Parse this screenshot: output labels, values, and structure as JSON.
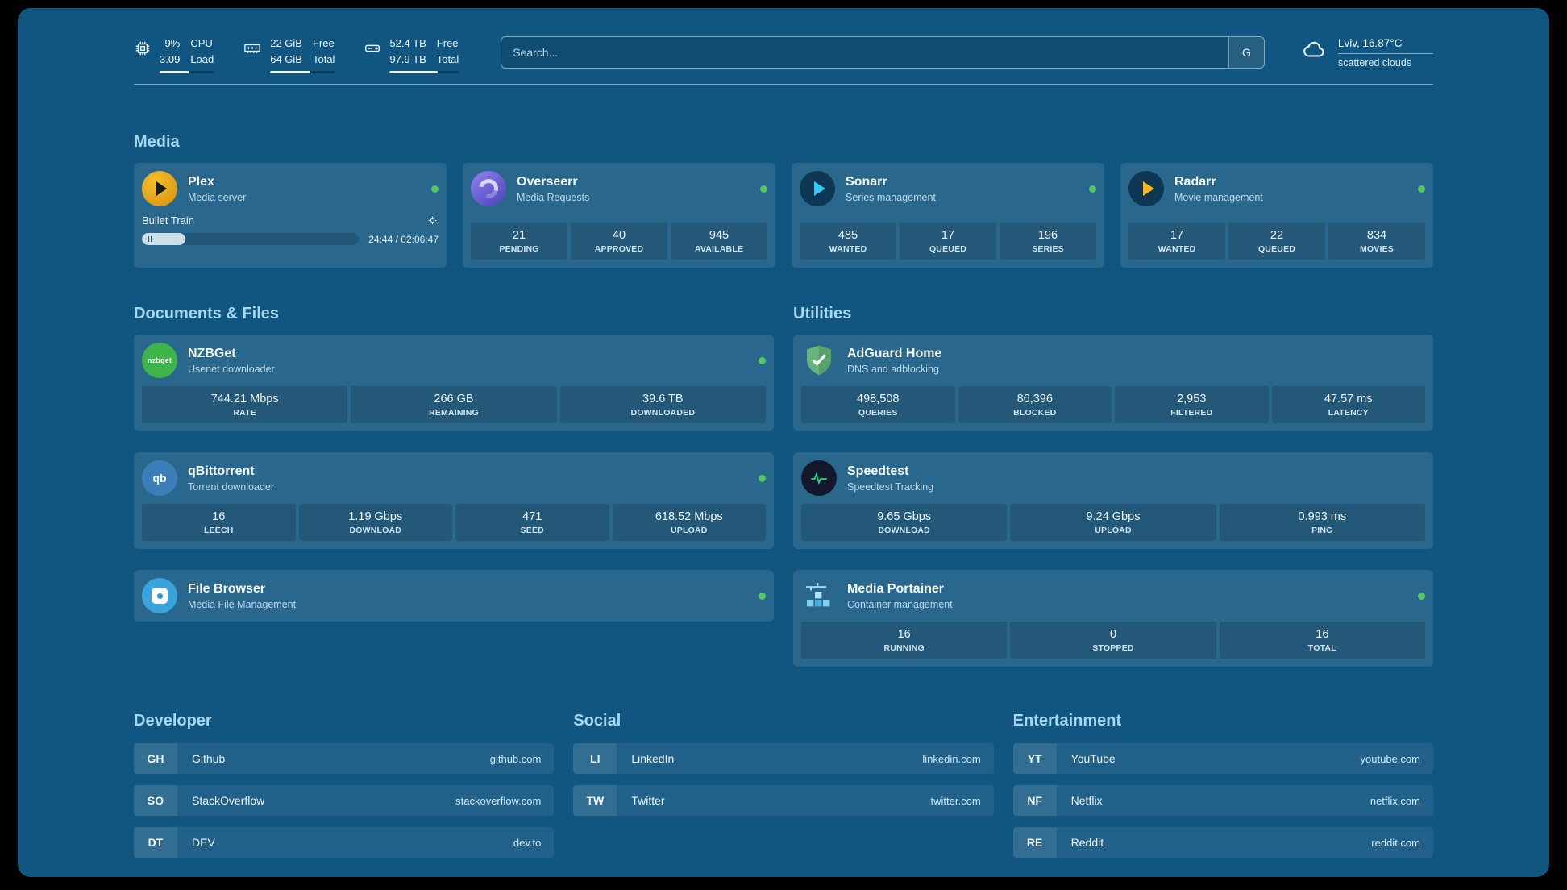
{
  "colors": {
    "background": "#115680",
    "card": "#2c6e93",
    "heading": "#a5d8f2",
    "status_online": "#4fcb5f"
  },
  "icons": [
    "cpu-chip-icon",
    "memory-icon",
    "disk-icon",
    "cloud-icon",
    "plex-icon",
    "overseerr-icon",
    "sonarr-icon",
    "radarr-icon",
    "nzbget-icon",
    "adguard-shield-icon",
    "qbittorrent-icon",
    "speedtest-icon",
    "filebrowser-icon",
    "portainer-icon",
    "gear-icon",
    "pause-icon",
    "status-dot"
  ],
  "topbar": {
    "cpu": {
      "values": [
        "9%",
        "3.09"
      ],
      "labels": [
        "CPU",
        "Load"
      ],
      "bar_pct": 55
    },
    "memory": {
      "values": [
        "22 GiB",
        "64 GiB"
      ],
      "labels": [
        "Free",
        "Total"
      ],
      "bar_pct": 62
    },
    "disk": {
      "values": [
        "52.4 TB",
        "97.9 TB"
      ],
      "labels": [
        "Free",
        "Total"
      ],
      "bar_pct": 70
    },
    "search": {
      "placeholder": "Search...",
      "engine": "G"
    },
    "weather": {
      "location": "Lviv, 16.87°C",
      "condition": "scattered clouds"
    }
  },
  "sections": {
    "media": {
      "title": "Media",
      "plex": {
        "name": "Plex",
        "subtitle": "Media server",
        "now_playing": "Bullet Train",
        "progress_pct": 20,
        "time": "24:44 / 02:06:47"
      },
      "overseerr": {
        "name": "Overseerr",
        "subtitle": "Media Requests",
        "stats": [
          {
            "value": "21",
            "label": "PENDING"
          },
          {
            "value": "40",
            "label": "APPROVED"
          },
          {
            "value": "945",
            "label": "AVAILABLE"
          }
        ]
      },
      "sonarr": {
        "name": "Sonarr",
        "subtitle": "Series management",
        "stats": [
          {
            "value": "485",
            "label": "WANTED"
          },
          {
            "value": "17",
            "label": "QUEUED"
          },
          {
            "value": "196",
            "label": "SERIES"
          }
        ]
      },
      "radarr": {
        "name": "Radarr",
        "subtitle": "Movie management",
        "stats": [
          {
            "value": "17",
            "label": "WANTED"
          },
          {
            "value": "22",
            "label": "QUEUED"
          },
          {
            "value": "834",
            "label": "MOVIES"
          }
        ]
      }
    },
    "documents": {
      "title": "Documents & Files",
      "nzbget": {
        "name": "NZBGet",
        "subtitle": "Usenet downloader",
        "icon_label": "nzbget",
        "stats": [
          {
            "value": "744.21 Mbps",
            "label": "RATE"
          },
          {
            "value": "266 GB",
            "label": "REMAINING"
          },
          {
            "value": "39.6 TB",
            "label": "DOWNLOADED"
          }
        ]
      },
      "qbittorrent": {
        "name": "qBittorrent",
        "subtitle": "Torrent downloader",
        "icon_label": "qb",
        "stats": [
          {
            "value": "16",
            "label": "LEECH"
          },
          {
            "value": "1.19 Gbps",
            "label": "DOWNLOAD"
          },
          {
            "value": "471",
            "label": "SEED"
          },
          {
            "value": "618.52 Mbps",
            "label": "UPLOAD"
          }
        ]
      },
      "filebrowser": {
        "name": "File Browser",
        "subtitle": "Media File Management"
      }
    },
    "utilities": {
      "title": "Utilities",
      "adguard": {
        "name": "AdGuard Home",
        "subtitle": "DNS and adblocking",
        "stats": [
          {
            "value": "498,508",
            "label": "QUERIES"
          },
          {
            "value": "86,396",
            "label": "BLOCKED"
          },
          {
            "value": "2,953",
            "label": "FILTERED"
          },
          {
            "value": "47.57 ms",
            "label": "LATENCY"
          }
        ]
      },
      "speedtest": {
        "name": "Speedtest",
        "subtitle": "Speedtest Tracking",
        "stats": [
          {
            "value": "9.65 Gbps",
            "label": "DOWNLOAD"
          },
          {
            "value": "9.24 Gbps",
            "label": "UPLOAD"
          },
          {
            "value": "0.993 ms",
            "label": "PING"
          }
        ]
      },
      "portainer": {
        "name": "Media Portainer",
        "subtitle": "Container management",
        "stats": [
          {
            "value": "16",
            "label": "RUNNING"
          },
          {
            "value": "0",
            "label": "STOPPED"
          },
          {
            "value": "16",
            "label": "TOTAL"
          }
        ]
      }
    },
    "bookmarks": {
      "developer": {
        "title": "Developer",
        "items": [
          {
            "abbr": "GH",
            "name": "Github",
            "url": "github.com"
          },
          {
            "abbr": "SO",
            "name": "StackOverflow",
            "url": "stackoverflow.com"
          },
          {
            "abbr": "DT",
            "name": "DEV",
            "url": "dev.to"
          }
        ]
      },
      "social": {
        "title": "Social",
        "items": [
          {
            "abbr": "LI",
            "name": "LinkedIn",
            "url": "linkedin.com"
          },
          {
            "abbr": "TW",
            "name": "Twitter",
            "url": "twitter.com"
          }
        ]
      },
      "entertainment": {
        "title": "Entertainment",
        "items": [
          {
            "abbr": "YT",
            "name": "YouTube",
            "url": "youtube.com"
          },
          {
            "abbr": "NF",
            "name": "Netflix",
            "url": "netflix.com"
          },
          {
            "abbr": "RE",
            "name": "Reddit",
            "url": "reddit.com"
          }
        ]
      }
    }
  }
}
